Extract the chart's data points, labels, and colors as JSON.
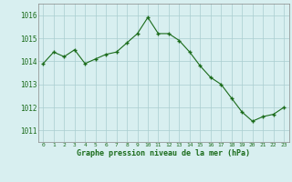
{
  "hours": [
    0,
    1,
    2,
    3,
    4,
    5,
    6,
    7,
    8,
    9,
    10,
    11,
    12,
    13,
    14,
    15,
    16,
    17,
    18,
    19,
    20,
    21,
    22,
    23
  ],
  "pressure": [
    1013.9,
    1014.4,
    1014.2,
    1014.5,
    1013.9,
    1014.1,
    1014.3,
    1014.4,
    1014.8,
    1015.2,
    1015.9,
    1015.2,
    1015.2,
    1014.9,
    1014.4,
    1013.8,
    1013.3,
    1013.0,
    1012.4,
    1011.8,
    1011.4,
    1011.6,
    1011.7,
    1012.0
  ],
  "line_color": "#1a6b1a",
  "marker": "+",
  "bg_color": "#d8eff0",
  "grid_color": "#aacdd0",
  "xlabel": "Graphe pression niveau de la mer (hPa)",
  "xlabel_color": "#1a6b1a",
  "tick_color": "#1a6b1a",
  "ylabel_ticks": [
    1011,
    1012,
    1013,
    1014,
    1015,
    1016
  ],
  "ylim": [
    1010.5,
    1016.5
  ],
  "xlim": [
    -0.5,
    23.5
  ]
}
